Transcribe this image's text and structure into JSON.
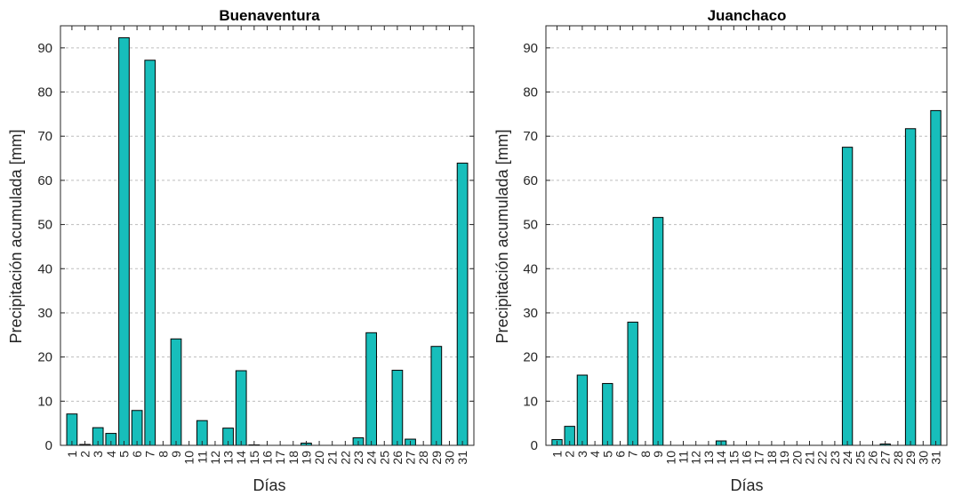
{
  "chart_data": [
    {
      "type": "bar",
      "title": "Buenaventura",
      "xlabel": "Días",
      "ylabel": "Precipitación acumulada [mm]",
      "ylim": [
        0,
        95
      ],
      "yticks": [
        0,
        10,
        20,
        30,
        40,
        50,
        60,
        70,
        80,
        90
      ],
      "grid": "y-dashed",
      "bar_color": "#17BEBB",
      "categories": [
        "1",
        "2",
        "3",
        "4",
        "5",
        "6",
        "7",
        "8",
        "9",
        "10",
        "11",
        "12",
        "13",
        "14",
        "15",
        "16",
        "17",
        "18",
        "19",
        "20",
        "21",
        "22",
        "23",
        "24",
        "25",
        "26",
        "27",
        "28",
        "29",
        "30",
        "31"
      ],
      "values": [
        7.1,
        0.2,
        4.0,
        2.7,
        92.3,
        7.9,
        87.2,
        0,
        24.1,
        0,
        5.6,
        0,
        3.9,
        16.9,
        0.1,
        0,
        0,
        0,
        0.5,
        0,
        0,
        0,
        1.7,
        25.5,
        0,
        17.0,
        1.4,
        0,
        22.4,
        0,
        63.9
      ]
    },
    {
      "type": "bar",
      "title": "Juanchaco",
      "xlabel": "Días",
      "ylabel": "Precipitación acumulada [mm]",
      "ylim": [
        0,
        95
      ],
      "yticks": [
        0,
        10,
        20,
        30,
        40,
        50,
        60,
        70,
        80,
        90
      ],
      "grid": "y-dashed",
      "bar_color": "#17BEBB",
      "categories": [
        "1",
        "2",
        "3",
        "4",
        "5",
        "6",
        "7",
        "8",
        "9",
        "10",
        "11",
        "12",
        "13",
        "14",
        "15",
        "16",
        "17",
        "18",
        "19",
        "20",
        "21",
        "22",
        "23",
        "24",
        "25",
        "26",
        "27",
        "28",
        "29",
        "30",
        "31"
      ],
      "values": [
        1.3,
        4.3,
        15.9,
        0,
        14.0,
        0,
        27.9,
        0,
        51.6,
        0,
        0,
        0,
        0,
        1.0,
        0,
        0,
        0,
        0,
        0,
        0,
        0,
        0,
        0,
        67.5,
        0,
        0,
        0.3,
        0,
        71.7,
        0,
        75.8
      ]
    }
  ]
}
